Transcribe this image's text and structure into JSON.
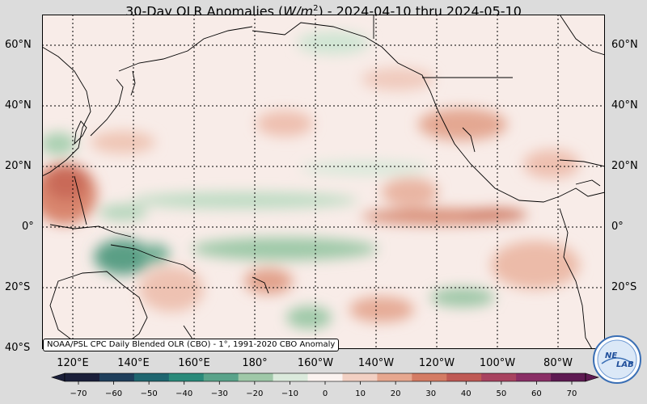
{
  "title": {
    "prefix": "30-Day OLR Anomalies (",
    "unit_base": "W/m",
    "unit_exp": "2",
    "suffix": ") - 2024-04-10 thru 2024-05-10"
  },
  "footnote": "NOAA/PSL CPC Daily Blended OLR (CBO) - 1°, 1991-2020 CBO Anomaly",
  "lat_labels": [
    "60°N",
    "40°N",
    "20°N",
    "0°",
    "20°S",
    "40°S"
  ],
  "lon_labels": [
    "120°E",
    "140°E",
    "160°E",
    "180°",
    "160°W",
    "140°W",
    "120°W",
    "100°W",
    "80°W"
  ],
  "colorbar": {
    "ticks": [
      "−70",
      "−60",
      "−50",
      "−40",
      "−30",
      "−20",
      "−10",
      "0",
      "10",
      "20",
      "30",
      "40",
      "50",
      "60",
      "70"
    ],
    "colors": [
      "#1b1f3a",
      "#1f3f5c",
      "#1f6670",
      "#2a8a7a",
      "#5aa38a",
      "#9fc8a8",
      "#dbeadc",
      "#fbf3f0",
      "#f2d0c3",
      "#e6a78f",
      "#d47c64",
      "#bf5a55",
      "#a84360",
      "#8a2f66",
      "#5e1a52"
    ]
  },
  "logo": {
    "line1": "NE",
    "line2": "LAB"
  }
}
